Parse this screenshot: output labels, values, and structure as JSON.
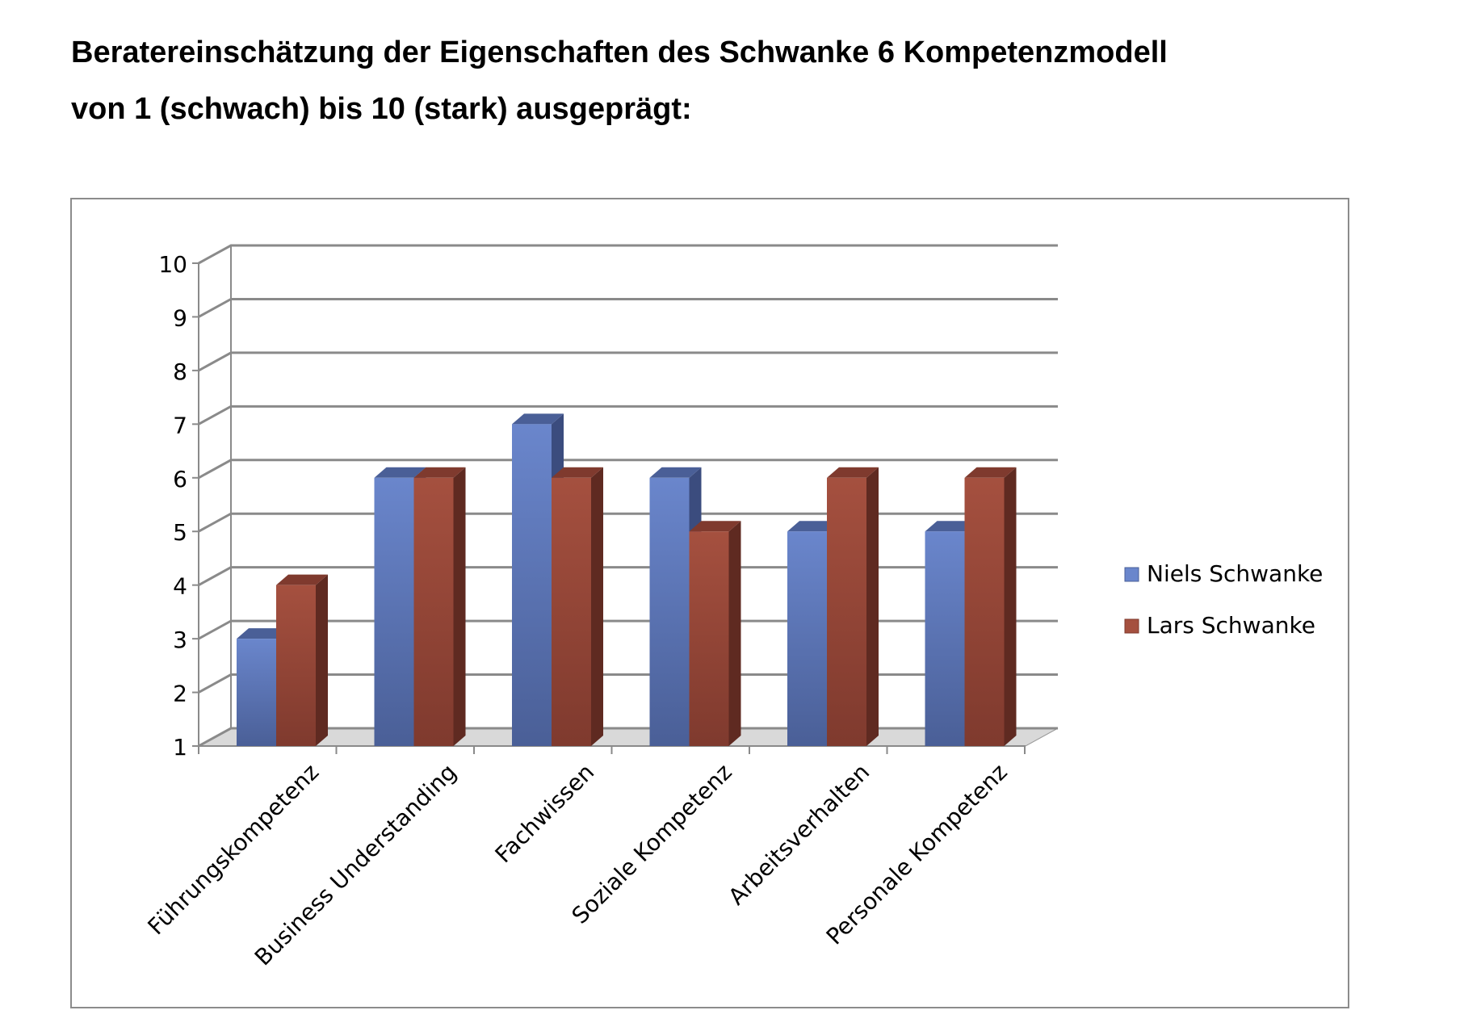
{
  "document": {
    "title_line1": "Beratereinschätzung der Eigenschaften des Schwanke 6 Kompetenzmodell",
    "title_line2": "von 1 (schwach) bis 10 (stark) ausgeprägt:"
  },
  "chart_data": {
    "type": "bar",
    "style": "3d-clustered-column",
    "title": "",
    "xlabel": "",
    "ylabel": "",
    "ylim": [
      1,
      10
    ],
    "yticks": [
      "1",
      "2",
      "3",
      "4",
      "5",
      "6",
      "7",
      "8",
      "9",
      "10"
    ],
    "grid": true,
    "legend_position": "right",
    "categories": [
      "Führungskompetenz",
      "Business Understanding",
      "Fachwissen",
      "Soziale Kompetenz",
      "Arbeitsverhalten",
      "Personale Kompetenz"
    ],
    "series": [
      {
        "name": "Niels Schwanke",
        "values": [
          3,
          6,
          7,
          6,
          5,
          5
        ],
        "color": "#6a86cc",
        "color_dark": "#4a5f97",
        "color_side": "#3b4c7e"
      },
      {
        "name": "Lars Schwanke",
        "values": [
          4,
          6,
          6,
          5,
          6,
          6
        ],
        "color": "#a5503f",
        "color_dark": "#7f3a2e",
        "color_side": "#5f2a21"
      }
    ]
  }
}
